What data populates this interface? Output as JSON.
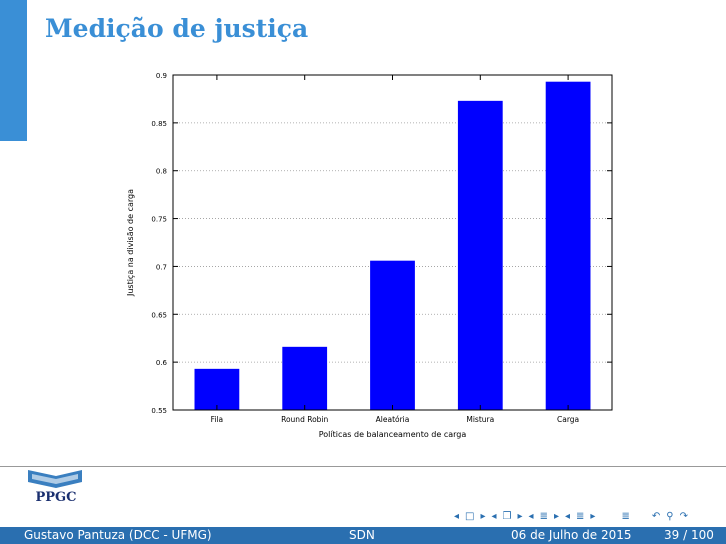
{
  "slide": {
    "title": "Medição de justiça"
  },
  "colors": {
    "accent": "#3a8fd6",
    "footer": "#2a6fb0",
    "bar": "#0000ff"
  },
  "logo": {
    "text": "PPGC"
  },
  "navigation": {
    "icons": [
      "prev-frame-icon",
      "frame-icon",
      "next-frame-icon",
      "prev-subsection-icon",
      "subsection-icon",
      "next-subsection-icon",
      "prev-section-icon",
      "section-icon",
      "next-section-icon",
      "prev-slide-icon",
      "slide-icon",
      "next-slide-icon",
      "appendix-icon",
      "undo-icon",
      "search-icon",
      "redo-icon"
    ]
  },
  "footer": {
    "author": "Gustavo Pantuza (DCC - UFMG)",
    "topic": "SDN",
    "date": "06 de Julho de 2015",
    "page": "39 / 100"
  },
  "chart_data": {
    "type": "bar",
    "categories": [
      "Fila",
      "Round Robin",
      "Aleatória",
      "Mistura",
      "Carga"
    ],
    "values": [
      0.593,
      0.616,
      0.706,
      0.873,
      0.893
    ],
    "xlabel": "Políticas de balanceamento de carga",
    "ylabel": "Justiça na divisão de carga",
    "ylim": [
      0.55,
      0.9
    ],
    "yticks": [
      0.55,
      0.6,
      0.65,
      0.7,
      0.75,
      0.8,
      0.85,
      0.9
    ],
    "ytick_labels": [
      "0.55",
      "0.6",
      "0.65",
      "0.7",
      "0.75",
      "0.8",
      "0.85",
      "0.9"
    ],
    "grid": true,
    "legend": false
  }
}
